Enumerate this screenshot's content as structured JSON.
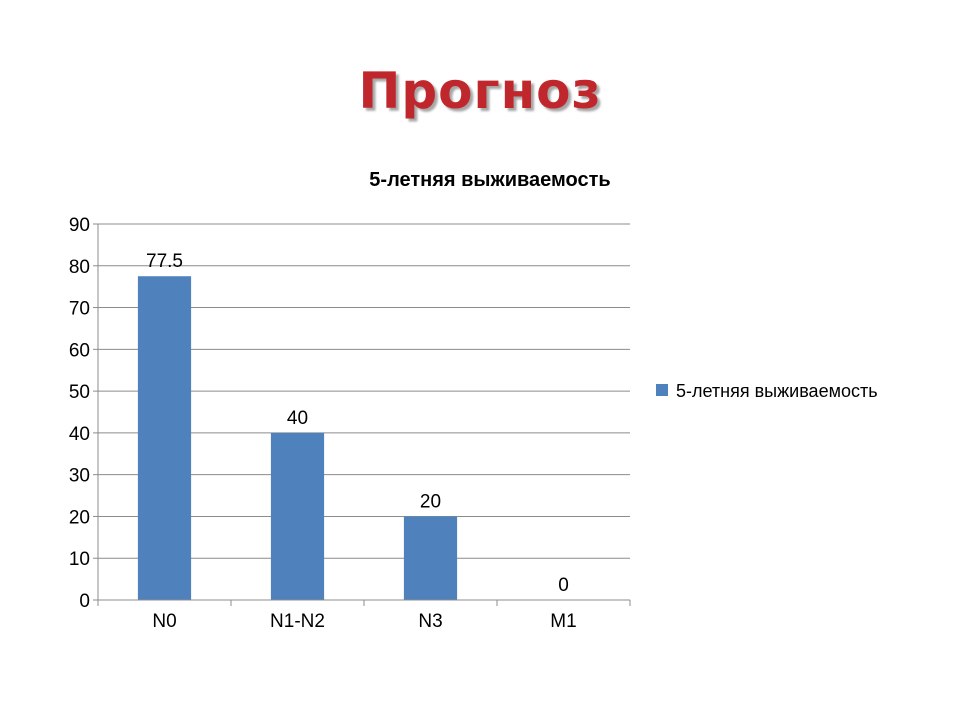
{
  "slide": {
    "title": "Прогноз"
  },
  "chart_data": {
    "type": "bar",
    "title": "5-летняя выживаемость",
    "categories": [
      "N0",
      "N1-N2",
      "N3",
      "M1"
    ],
    "series": [
      {
        "name": "5-летняя выживаемость",
        "values": [
          77.5,
          40,
          20,
          0
        ],
        "color": "#4F81BD"
      }
    ],
    "data_labels": [
      "77.5",
      "40",
      "20",
      "0"
    ],
    "xlabel": "",
    "ylabel": "",
    "ylim": [
      0,
      90
    ],
    "yticks": [
      0,
      10,
      20,
      30,
      40,
      50,
      60,
      70,
      80,
      90
    ],
    "grid": true,
    "legend_position": "right"
  }
}
